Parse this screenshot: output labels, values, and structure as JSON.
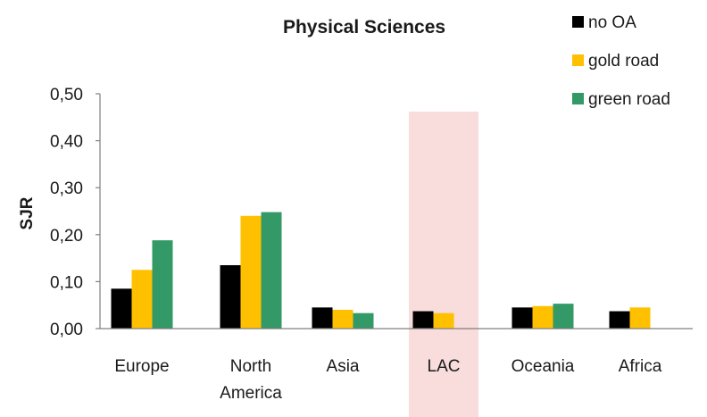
{
  "chart_data": {
    "type": "bar",
    "title": "Physical Sciences",
    "ylabel": "SJR",
    "xlabel": "",
    "ylim": [
      0,
      0.5
    ],
    "yticks": [
      "0,00",
      "0,10",
      "0,20",
      "0,30",
      "0,40",
      "0,50"
    ],
    "categories": [
      [
        "Europe"
      ],
      [
        "North",
        "America"
      ],
      [
        "Asia"
      ],
      [
        "LAC"
      ],
      [
        "Oceania"
      ],
      [
        "Africa"
      ]
    ],
    "series": [
      {
        "name": "no OA",
        "color": "#000000",
        "values": [
          0.085,
          0.135,
          0.045,
          0.037,
          0.045,
          0.037
        ]
      },
      {
        "name": "gold road",
        "color": "#FFC000",
        "values": [
          0.125,
          0.24,
          0.04,
          0.033,
          0.048,
          0.045
        ]
      },
      {
        "name": "green road",
        "color": "#339966",
        "values": [
          0.188,
          0.248,
          0.033,
          null,
          0.053,
          null
        ]
      }
    ],
    "highlight_category": "LAC",
    "highlight_color": "#F9DCDC",
    "grid": false,
    "legend_position": "top-right"
  }
}
